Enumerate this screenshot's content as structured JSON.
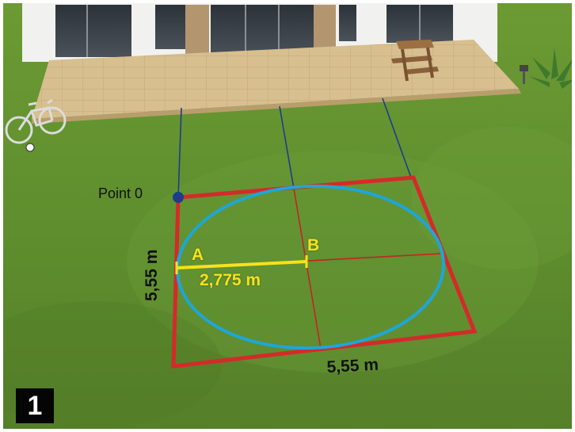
{
  "labels": {
    "origin_point": "Point 0",
    "width_dimension": "5,55 m",
    "depth_dimension": "5,55 m",
    "point_a": "A",
    "point_b": "B",
    "radius_dimension": "2,775 m"
  },
  "step_number": "1",
  "colors": {
    "grass": "#5f8f2e",
    "patio": "#d7bf8f",
    "square_outline": "#d42a2a",
    "circle": "#1ea6d8",
    "radius_line": "#f7e21a",
    "guide_lines": "#1e3d8a",
    "origin_dot": "#1e3d8a"
  }
}
